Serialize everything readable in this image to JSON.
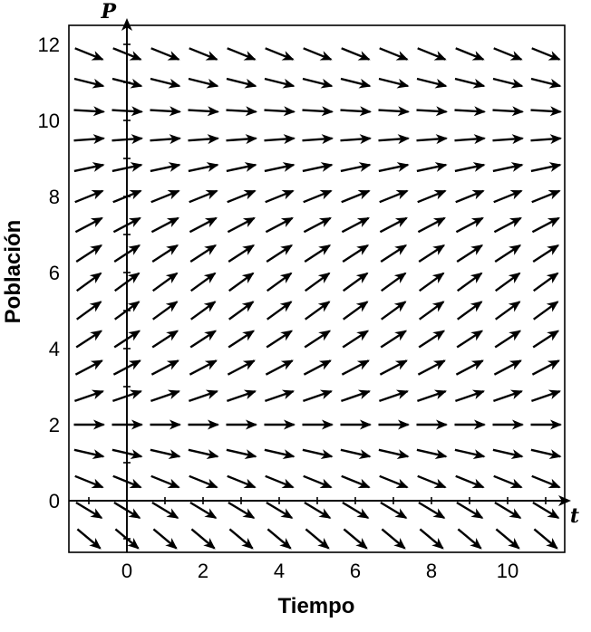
{
  "figure": {
    "background": "#ffffff",
    "ink_color": "#000000"
  },
  "chart_data": {
    "type": "direction_field",
    "xlabel": "Tiempo",
    "ylabel": "Población",
    "x_axis_symbol": "t",
    "y_axis_symbol": "P",
    "x_range": [
      -1.5,
      11.6
    ],
    "y_range": [
      -1.4,
      12.5
    ],
    "x_ticks_labeled": [
      0,
      2,
      4,
      6,
      8,
      10
    ],
    "y_ticks_labeled": [
      0,
      2,
      4,
      6,
      8,
      10,
      12
    ],
    "x_tick_positions": [
      -1,
      1,
      2,
      3,
      4,
      5,
      6,
      7,
      8,
      9,
      10,
      11
    ],
    "y_tick_positions": [
      -1,
      1,
      2,
      3,
      4,
      5,
      6,
      7,
      8,
      9,
      10,
      11,
      12
    ],
    "grid": false,
    "legend": false,
    "equilibria_P": [
      2,
      10
    ],
    "arrow_color": "#000000",
    "field": {
      "t_values": [
        -1,
        0,
        1,
        2,
        3,
        4,
        5,
        6,
        7,
        8,
        9,
        10,
        11
      ],
      "rows": [
        {
          "P": 11.75,
          "angle_deg": -22
        },
        {
          "P": 11.0,
          "angle_deg": -14
        },
        {
          "P": 10.25,
          "angle_deg": -3
        },
        {
          "P": 9.5,
          "angle_deg": 4
        },
        {
          "P": 8.75,
          "angle_deg": 12
        },
        {
          "P": 8.0,
          "angle_deg": 22
        },
        {
          "P": 7.25,
          "angle_deg": 28
        },
        {
          "P": 6.5,
          "angle_deg": 33
        },
        {
          "P": 5.75,
          "angle_deg": 36
        },
        {
          "P": 5.0,
          "angle_deg": 36
        },
        {
          "P": 4.25,
          "angle_deg": 33
        },
        {
          "P": 3.5,
          "angle_deg": 28
        },
        {
          "P": 2.75,
          "angle_deg": 19
        },
        {
          "P": 2.0,
          "angle_deg": 0
        },
        {
          "P": 1.25,
          "angle_deg": -13
        },
        {
          "P": 0.5,
          "angle_deg": -22
        },
        {
          "P": -0.25,
          "angle_deg": -31
        },
        {
          "P": -1.0,
          "angle_deg": -40
        }
      ]
    }
  }
}
